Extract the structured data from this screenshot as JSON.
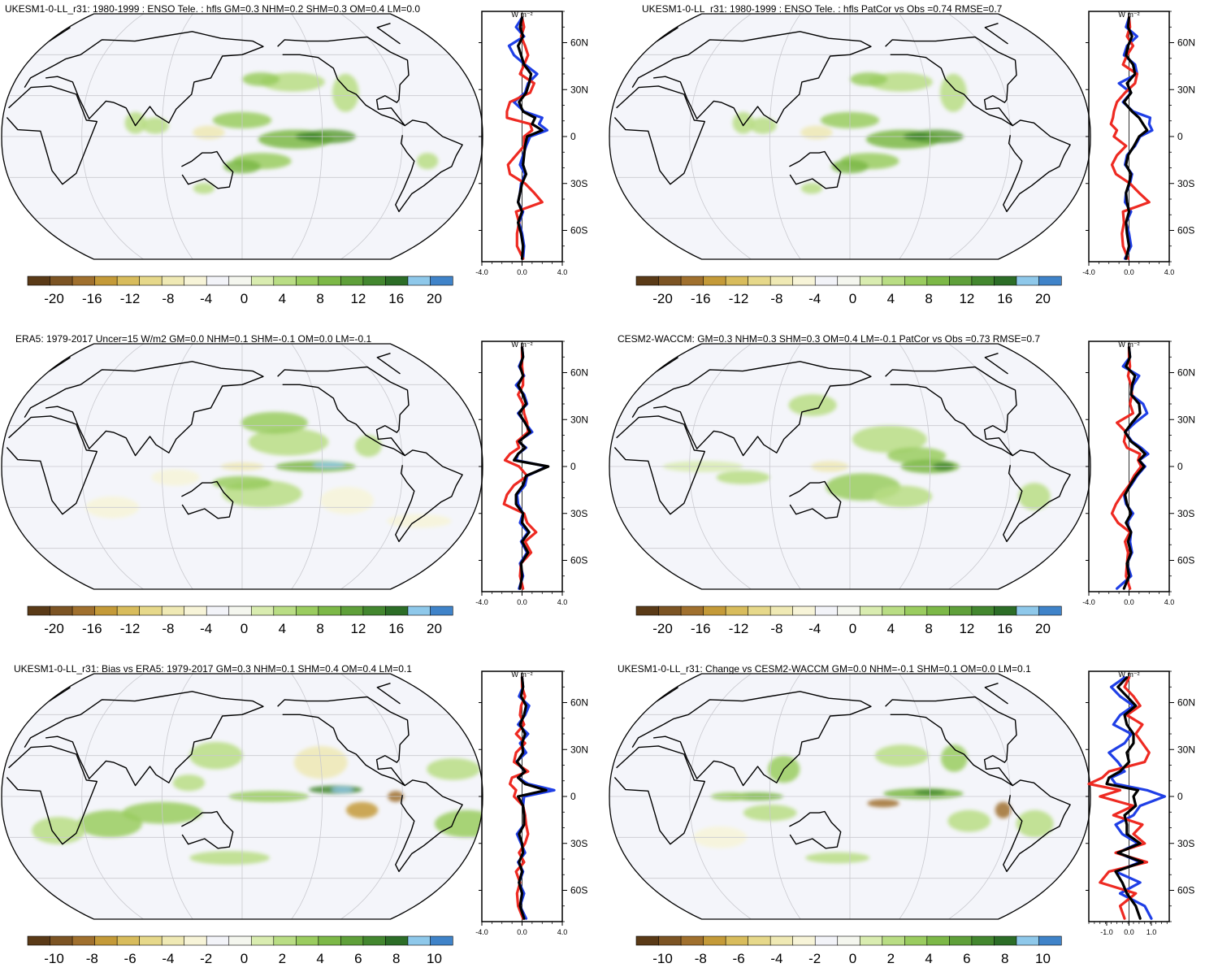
{
  "panels": [
    {
      "title": "UKESM1-0-LL_r31: 1980-1999 : ENSO Tele. : hfls GM=0.3 NHM=0.2 SHM=0.3 OM=0.4 LM=0.0",
      "colorbar": {
        "labels": [
          "-20",
          "-16",
          "-12",
          "-8",
          "-4",
          "0",
          "4",
          "8",
          "12",
          "16",
          "20"
        ]
      },
      "profile": {
        "unit": "W m⁻²",
        "xticks": [
          "-4.0",
          "0.0",
          "4.0"
        ],
        "xlim": [
          -4,
          4
        ],
        "lat_labels": [
          "60N",
          "30N",
          "0",
          "30S",
          "60S"
        ]
      }
    },
    {
      "title": "UKESM1-0-LL_r31: 1980-1999 : ENSO Tele. : hfls PatCor vs Obs =0.74 RMSE=0.7",
      "colorbar": {
        "labels": [
          "-20",
          "-16",
          "-12",
          "-8",
          "-4",
          "0",
          "4",
          "8",
          "12",
          "16",
          "20"
        ]
      },
      "profile": {
        "unit": "W m⁻²",
        "xticks": [
          "-4.0",
          "0.0",
          "4.0"
        ],
        "xlim": [
          -4,
          4
        ],
        "lat_labels": [
          "60N",
          "30N",
          "0",
          "30S",
          "60S"
        ]
      }
    },
    {
      "title": "ERA5: 1979-2017 Uncer=15 W/m2 GM=0.0 NHM=0.1 SHM=-0.1 OM=0.0 LM=-0.1",
      "colorbar": {
        "labels": [
          "-20",
          "-16",
          "-12",
          "-8",
          "-4",
          "0",
          "4",
          "8",
          "12",
          "16",
          "20"
        ]
      },
      "profile": {
        "unit": "W m⁻²",
        "xticks": [
          "-4.0",
          "0.0",
          "4.0"
        ],
        "xlim": [
          -4,
          4
        ],
        "lat_labels": [
          "60N",
          "30N",
          "0",
          "30S",
          "60S"
        ]
      }
    },
    {
      "title": "CESM2-WACCM: GM=0.3 NHM=0.3 SHM=0.3 OM=0.4 LM=-0.1 PatCor vs Obs =0.73 RMSE=0.7",
      "colorbar": {
        "labels": [
          "-20",
          "-16",
          "-12",
          "-8",
          "-4",
          "0",
          "4",
          "8",
          "12",
          "16",
          "20"
        ]
      },
      "profile": {
        "unit": "W m⁻²",
        "xticks": [
          "-4.0",
          "0.0",
          "4.0"
        ],
        "xlim": [
          -4,
          4
        ],
        "lat_labels": [
          "60N",
          "30N",
          "0",
          "30S",
          "60S"
        ]
      }
    },
    {
      "title": "UKESM1-0-LL_r31: Bias vs ERA5: 1979-2017 GM=0.3 NHM=0.1 SHM=0.4 OM=0.4 LM=0.1",
      "colorbar": {
        "labels": [
          "-10",
          "-8",
          "-6",
          "-4",
          "-2",
          "0",
          "2",
          "4",
          "6",
          "8",
          "10"
        ]
      },
      "profile": {
        "unit": "W m⁻²",
        "xticks": [
          "-4.0",
          "0.0",
          "4.0"
        ],
        "xlim": [
          -4,
          4
        ],
        "lat_labels": [
          "60N",
          "30N",
          "0",
          "30S",
          "60S"
        ]
      }
    },
    {
      "title": "UKESM1-0-LL_r31: Change vs CESM2-WACCM GM=0.0 NHM=-0.1 SHM=0.1 OM=0.0 LM=0.1",
      "colorbar": {
        "labels": [
          "-10",
          "-8",
          "-6",
          "-4",
          "-2",
          "0",
          "2",
          "4",
          "6",
          "8",
          "10"
        ]
      },
      "profile": {
        "unit": "W m⁻²",
        "xticks": [
          "-1.0",
          "0.0",
          "1.0"
        ],
        "xlim": [
          -1.8,
          1.8
        ],
        "lat_labels": [
          "60N",
          "30N",
          "0",
          "30S",
          "60S"
        ]
      }
    }
  ],
  "colorbar_colors": [
    "#5a3a17",
    "#7c5424",
    "#a0702e",
    "#c49a38",
    "#d8bc5c",
    "#e6d88a",
    "#efe9b4",
    "#f7f4d8",
    "#f2f3f8",
    "#f4f6ee",
    "#d9ecb0",
    "#b9dd84",
    "#9acc5f",
    "#7cb847",
    "#5fa03a",
    "#43872f",
    "#2c6d27",
    "#8ec8ea",
    "#3f83c9"
  ],
  "colors": {
    "profile_blue": "#1f3fe6",
    "profile_red": "#ee2a22",
    "profile_black": "#000000"
  },
  "chart_data": [
    {
      "type": "line",
      "xlabel": "W m⁻²",
      "xlim": [
        -4,
        4
      ],
      "ylim": [
        -80,
        80
      ],
      "lat": [
        -78,
        -70,
        -62,
        -55,
        -48,
        -42,
        -36,
        -30,
        -24,
        -18,
        -12,
        -6,
        0,
        4,
        8,
        12,
        16,
        22,
        28,
        34,
        40,
        46,
        52,
        58,
        64,
        70,
        76
      ],
      "series": [
        {
          "color": "#1f3fe6",
          "values": [
            0.1,
            0.2,
            0.0,
            -0.3,
            0.1,
            -0.4,
            -0.2,
            -0.1,
            0.3,
            -0.2,
            0.1,
            0.4,
            0.8,
            2.5,
            1.7,
            2.0,
            0.2,
            -0.8,
            0.3,
            0.6,
            1.5,
            0.3,
            -0.8,
            -1.3,
            0.2,
            -0.6,
            0.0
          ]
        },
        {
          "color": "#ee2a22",
          "values": [
            0.1,
            -0.5,
            -0.5,
            -0.3,
            -0.6,
            2.0,
            1.2,
            0.3,
            -1.2,
            -1.4,
            -0.6,
            0.2,
            0.2,
            1.0,
            0.8,
            -1.5,
            -1.5,
            -1.2,
            0.8,
            1.2,
            -0.2,
            0.2,
            0.6,
            0.3,
            -0.1,
            0.2,
            0.0
          ]
        },
        {
          "color": "#000000",
          "values": [
            0.0,
            0.1,
            -0.1,
            -0.4,
            0.0,
            -0.4,
            -0.2,
            0.0,
            0.4,
            0.1,
            0.2,
            0.3,
            0.5,
            2.0,
            1.0,
            1.3,
            0.1,
            -0.3,
            0.4,
            0.7,
            0.9,
            0.2,
            -0.1,
            -0.4,
            0.1,
            -0.2,
            0.0
          ]
        }
      ]
    },
    {
      "type": "line",
      "xlabel": "W m⁻²",
      "xlim": [
        -4,
        4
      ],
      "ylim": [
        -80,
        80
      ],
      "lat": [
        -78,
        -70,
        -62,
        -55,
        -48,
        -42,
        -36,
        -30,
        -24,
        -18,
        -12,
        -6,
        0,
        4,
        8,
        12,
        16,
        22,
        28,
        34,
        40,
        46,
        52,
        58,
        64,
        70,
        76
      ],
      "series": [
        {
          "color": "#1f3fe6",
          "values": [
            -0.4,
            0.2,
            0.0,
            -0.3,
            0.2,
            -0.4,
            -0.3,
            0.1,
            0.3,
            -0.4,
            -0.2,
            0.6,
            1.1,
            2.3,
            2.0,
            2.1,
            0.4,
            -0.6,
            0.2,
            -1.0,
            0.8,
            0.6,
            -0.5,
            -0.2,
            0.8,
            -0.3,
            0.0
          ]
        },
        {
          "color": "#ee2a22",
          "values": [
            -0.1,
            -0.6,
            -0.7,
            -0.5,
            -0.6,
            2.0,
            1.0,
            0.1,
            -1.3,
            -1.7,
            -1.2,
            -0.3,
            -1.5,
            -1.2,
            -1.8,
            -1.6,
            -1.5,
            -1.2,
            -0.4,
            0.6,
            0.8,
            -0.6,
            -0.2,
            0.4,
            -0.2,
            0.1,
            0.0
          ]
        },
        {
          "color": "#000000",
          "values": [
            -0.3,
            0.0,
            -0.2,
            -0.3,
            0.0,
            -0.2,
            -0.3,
            0.0,
            0.2,
            -0.3,
            -0.1,
            0.5,
            1.0,
            1.8,
            1.4,
            1.0,
            0.3,
            -0.5,
            0.2,
            -0.2,
            0.6,
            0.4,
            -0.3,
            -0.1,
            0.3,
            -0.1,
            0.0
          ]
        }
      ]
    },
    {
      "type": "line",
      "xlabel": "W m⁻²",
      "xlim": [
        -4,
        4
      ],
      "ylim": [
        -80,
        80
      ],
      "lat": [
        -78,
        -70,
        -62,
        -55,
        -48,
        -42,
        -36,
        -30,
        -24,
        -18,
        -12,
        -6,
        0,
        4,
        8,
        12,
        16,
        22,
        28,
        34,
        40,
        46,
        52,
        58,
        64,
        70,
        76
      ],
      "series": [
        {
          "color": "#1f3fe6",
          "values": [
            -0.3,
            0.1,
            -0.2,
            0.5,
            -0.1,
            0.6,
            -0.2,
            0.1,
            -0.4,
            -0.5,
            0.3,
            0.5,
            2.5,
            -0.6,
            -0.4,
            0.4,
            -0.4,
            1.0,
            0.3,
            -0.4,
            0.5,
            0.2,
            -0.6,
            0.2,
            -0.3,
            0.1,
            0.0
          ]
        },
        {
          "color": "#ee2a22",
          "values": [
            0.1,
            -0.2,
            -0.1,
            0.9,
            0.3,
            1.4,
            0.5,
            0.2,
            -1.8,
            -1.5,
            -0.8,
            0.5,
            -0.3,
            -1.7,
            -1.2,
            -0.3,
            -0.5,
            0.6,
            0.5,
            0.2,
            0.1,
            -0.4,
            0.1,
            0.1,
            0.0,
            0.0,
            0.0
          ]
        },
        {
          "color": "#000000",
          "values": [
            -0.2,
            0.0,
            -0.1,
            0.6,
            0.0,
            0.7,
            0.0,
            0.1,
            -0.6,
            -0.6,
            0.1,
            0.4,
            2.6,
            -0.8,
            -0.4,
            0.3,
            -0.3,
            0.8,
            0.3,
            -0.3,
            0.4,
            0.1,
            -0.4,
            0.1,
            -0.2,
            0.1,
            0.0
          ]
        }
      ]
    },
    {
      "type": "line",
      "xlabel": "W m⁻²",
      "xlim": [
        -4,
        4
      ],
      "ylim": [
        -80,
        80
      ],
      "lat": [
        -78,
        -70,
        -62,
        -55,
        -48,
        -42,
        -36,
        -30,
        -24,
        -18,
        -12,
        -6,
        0,
        4,
        8,
        12,
        16,
        22,
        28,
        34,
        40,
        46,
        52,
        58,
        64,
        70,
        76
      ],
      "series": [
        {
          "color": "#1f3fe6",
          "values": [
            -1.2,
            0.2,
            -0.2,
            0.3,
            0.1,
            0.2,
            -0.2,
            0.4,
            -0.3,
            -0.5,
            0.2,
            0.8,
            1.6,
            1.0,
            1.9,
            1.2,
            0.3,
            -0.4,
            0.6,
            1.8,
            1.4,
            0.2,
            0.4,
            1.0,
            -0.6,
            0.1,
            0.0
          ]
        },
        {
          "color": "#ee2a22",
          "values": [
            0.1,
            -0.3,
            -0.2,
            -0.1,
            -0.4,
            0.1,
            -1.1,
            -1.7,
            -1.3,
            -0.7,
            0.0,
            0.5,
            1.2,
            0.9,
            1.1,
            -0.2,
            -0.5,
            -0.3,
            -1.2,
            0.4,
            0.1,
            0.3,
            0.2,
            -0.1,
            0.1,
            0.0,
            0.0
          ]
        },
        {
          "color": "#000000",
          "values": [
            -0.5,
            0.0,
            -0.2,
            0.2,
            -0.1,
            0.2,
            -0.3,
            0.2,
            -0.2,
            -0.4,
            0.1,
            0.7,
            1.5,
            1.0,
            1.6,
            1.0,
            0.2,
            -0.4,
            0.3,
            1.1,
            1.0,
            0.2,
            0.3,
            0.6,
            -0.3,
            0.1,
            0.0
          ]
        }
      ]
    },
    {
      "type": "line",
      "xlabel": "W m⁻²",
      "xlim": [
        -4,
        4
      ],
      "ylim": [
        -80,
        80
      ],
      "lat": [
        -78,
        -70,
        -62,
        -55,
        -48,
        -42,
        -36,
        -30,
        -24,
        -18,
        -12,
        -6,
        0,
        4,
        8,
        12,
        16,
        22,
        28,
        34,
        40,
        46,
        52,
        58,
        64,
        70,
        76
      ],
      "series": [
        {
          "color": "#1f3fe6",
          "values": [
            0.4,
            -0.2,
            0.2,
            -0.3,
            0.1,
            -0.4,
            0.3,
            -0.1,
            -0.5,
            0.2,
            0.3,
            0.1,
            0.2,
            3.2,
            0.6,
            -0.4,
            0.3,
            -0.6,
            0.4,
            -0.2,
            0.6,
            -0.4,
            0.3,
            0.7,
            -0.3,
            0.1,
            0.0
          ]
        },
        {
          "color": "#ee2a22",
          "values": [
            0.1,
            -0.4,
            -0.5,
            -0.2,
            -0.6,
            0.2,
            -0.3,
            0.3,
            0.6,
            0.4,
            0.3,
            0.1,
            -0.8,
            -0.6,
            -1.2,
            -1.0,
            0.6,
            -0.8,
            -0.6,
            0.3,
            -0.6,
            0.2,
            -0.2,
            -0.1,
            0.3,
            0.0,
            0.0
          ]
        },
        {
          "color": "#000000",
          "values": [
            0.2,
            -0.2,
            0.0,
            -0.3,
            0.0,
            -0.3,
            0.1,
            0.0,
            -0.3,
            0.2,
            0.2,
            0.1,
            -0.4,
            2.4,
            0.3,
            -0.4,
            0.3,
            -0.5,
            0.1,
            0.0,
            0.3,
            -0.2,
            0.2,
            0.4,
            -0.1,
            0.1,
            0.0
          ]
        }
      ]
    },
    {
      "type": "line",
      "xlabel": "W m⁻²",
      "xlim": [
        -1.8,
        1.8
      ],
      "ylim": [
        -80,
        80
      ],
      "lat": [
        -78,
        -70,
        -62,
        -55,
        -48,
        -42,
        -36,
        -30,
        -24,
        -18,
        -12,
        -6,
        0,
        4,
        8,
        12,
        16,
        22,
        28,
        34,
        40,
        46,
        52,
        58,
        64,
        70,
        76
      ],
      "series": [
        {
          "color": "#1f3fe6",
          "values": [
            1.0,
            0.7,
            -0.4,
            0.5,
            -0.6,
            0.5,
            -0.5,
            0.4,
            -0.3,
            -0.6,
            0.2,
            0.5,
            1.6,
            0.8,
            -0.6,
            -0.8,
            -0.2,
            -0.5,
            -0.9,
            -0.2,
            0.1,
            -0.7,
            -0.4,
            0.2,
            -0.4,
            -0.8,
            -0.2
          ]
        },
        {
          "color": "#ee2a22",
          "values": [
            -0.2,
            -0.4,
            0.3,
            -1.3,
            -0.9,
            0.8,
            -0.6,
            0.7,
            0.2,
            0.6,
            -0.7,
            0.2,
            -1.3,
            -0.4,
            -1.8,
            -1.2,
            -0.9,
            0.7,
            0.9,
            0.6,
            0.3,
            0.6,
            -0.1,
            0.5,
            0.2,
            -0.2,
            0.0
          ]
        },
        {
          "color": "#000000",
          "values": [
            0.5,
            0.3,
            -0.1,
            -0.3,
            -0.6,
            0.6,
            -0.5,
            0.5,
            -0.1,
            -0.1,
            -0.2,
            0.3,
            0.2,
            0.4,
            -1.0,
            -0.9,
            -0.4,
            0.0,
            -0.1,
            0.2,
            0.2,
            -0.1,
            -0.2,
            0.3,
            -0.1,
            -0.5,
            -0.1
          ]
        }
      ]
    }
  ]
}
